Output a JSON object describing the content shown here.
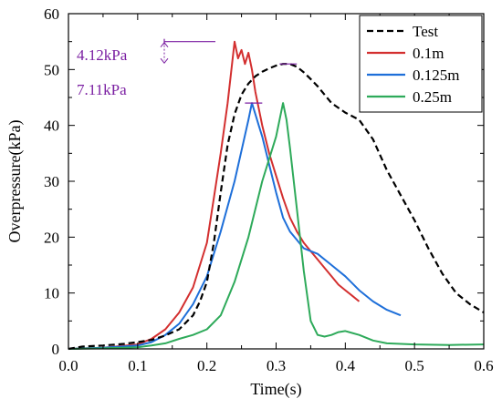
{
  "chart_data": {
    "type": "line",
    "title": "",
    "xlabel": "Time(s)",
    "ylabel": "Overpressure(kPa)",
    "xlim": [
      0.0,
      0.6
    ],
    "ylim": [
      0,
      60
    ],
    "x_ticks": [
      "0.0",
      "0.1",
      "0.2",
      "0.3",
      "0.4",
      "0.5",
      "0.6"
    ],
    "y_ticks": [
      "0",
      "10",
      "20",
      "30",
      "40",
      "50",
      "60"
    ],
    "grid": false,
    "legend_position": "top-right",
    "annotations": [
      {
        "text": "4.12kPa",
        "color": "#7b1fa2"
      },
      {
        "text": "7.11kPa",
        "color": "#7b1fa2"
      }
    ],
    "series": [
      {
        "name": "Test",
        "color": "#000000",
        "style": "dashed",
        "x": [
          0.0,
          0.02,
          0.05,
          0.08,
          0.1,
          0.12,
          0.14,
          0.16,
          0.18,
          0.19,
          0.2,
          0.21,
          0.22,
          0.23,
          0.24,
          0.25,
          0.26,
          0.27,
          0.28,
          0.29,
          0.3,
          0.31,
          0.32,
          0.33,
          0.34,
          0.35,
          0.36,
          0.37,
          0.38,
          0.4,
          0.42,
          0.44,
          0.46,
          0.48,
          0.5,
          0.52,
          0.54,
          0.56,
          0.58,
          0.6
        ],
        "y": [
          0,
          0.4,
          0.6,
          0.9,
          1.2,
          1.6,
          2.4,
          3.5,
          6.0,
          8.5,
          12.0,
          19.0,
          28.0,
          36.5,
          42.0,
          45.5,
          47.5,
          48.8,
          49.6,
          50.2,
          50.7,
          51.0,
          51.0,
          50.5,
          49.5,
          48.3,
          47.0,
          45.5,
          44.0,
          42.3,
          41.0,
          37.5,
          32.0,
          27.5,
          23.0,
          18.0,
          13.5,
          10.0,
          8.0,
          6.5
        ]
      },
      {
        "name": "0.1m",
        "color": "#d32f2f",
        "style": "solid",
        "x": [
          0.0,
          0.05,
          0.1,
          0.12,
          0.14,
          0.16,
          0.18,
          0.2,
          0.21,
          0.22,
          0.23,
          0.235,
          0.24,
          0.245,
          0.25,
          0.255,
          0.26,
          0.265,
          0.27,
          0.28,
          0.29,
          0.3,
          0.31,
          0.32,
          0.33,
          0.34,
          0.35,
          0.36,
          0.37,
          0.38,
          0.39,
          0.4,
          0.41,
          0.42
        ],
        "y": [
          0,
          0.2,
          0.8,
          1.8,
          3.5,
          6.5,
          11.0,
          19.0,
          27.0,
          35.0,
          44.0,
          49.5,
          55.0,
          52.0,
          53.5,
          51.0,
          53.0,
          50.0,
          46.0,
          40.0,
          35.0,
          31.0,
          27.0,
          23.5,
          21.0,
          19.0,
          17.5,
          16.0,
          14.5,
          13.0,
          11.5,
          10.5,
          9.5,
          8.5
        ]
      },
      {
        "name": "0.125m",
        "color": "#1e6fd9",
        "style": "solid",
        "x": [
          0.0,
          0.05,
          0.1,
          0.12,
          0.14,
          0.16,
          0.18,
          0.2,
          0.22,
          0.24,
          0.25,
          0.26,
          0.265,
          0.27,
          0.275,
          0.28,
          0.29,
          0.3,
          0.31,
          0.32,
          0.33,
          0.34,
          0.35,
          0.36,
          0.38,
          0.4,
          0.42,
          0.44,
          0.46,
          0.48
        ],
        "y": [
          0,
          0.2,
          0.6,
          1.2,
          2.5,
          4.5,
          8.0,
          13.0,
          21.0,
          30.0,
          35.5,
          41.0,
          44.0,
          42.0,
          40.0,
          38.0,
          33.0,
          28.0,
          23.5,
          21.0,
          19.5,
          18.0,
          17.5,
          17.0,
          15.0,
          13.0,
          10.5,
          8.5,
          7.0,
          6.0
        ]
      },
      {
        "name": "0.25m",
        "color": "#2eaa5a",
        "style": "solid",
        "x": [
          0.0,
          0.05,
          0.1,
          0.12,
          0.14,
          0.16,
          0.18,
          0.2,
          0.22,
          0.24,
          0.26,
          0.28,
          0.29,
          0.3,
          0.305,
          0.31,
          0.315,
          0.32,
          0.33,
          0.34,
          0.35,
          0.36,
          0.37,
          0.38,
          0.39,
          0.4,
          0.42,
          0.44,
          0.46,
          0.5,
          0.55,
          0.6
        ],
        "y": [
          0,
          0.1,
          0.3,
          0.6,
          1.0,
          1.8,
          2.5,
          3.5,
          6.0,
          12.0,
          20.0,
          30.0,
          34.0,
          38.0,
          41.0,
          44.0,
          41.0,
          36.0,
          25.0,
          14.0,
          5.0,
          2.5,
          2.2,
          2.5,
          3.0,
          3.2,
          2.5,
          1.5,
          1.0,
          0.8,
          0.7,
          0.8
        ]
      }
    ]
  }
}
